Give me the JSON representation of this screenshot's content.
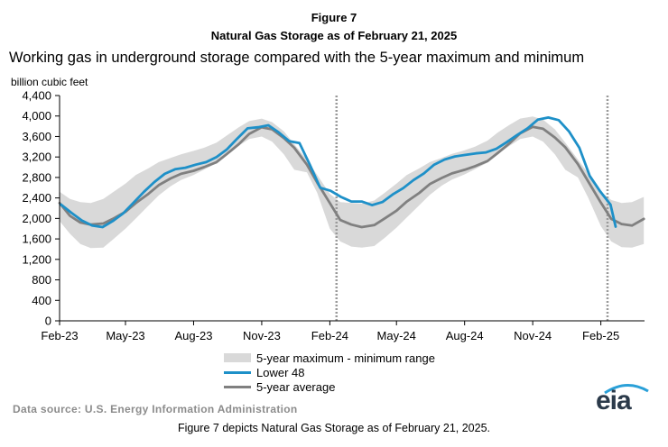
{
  "figure": {
    "label": "Figure 7",
    "title": "Natural Gas Storage as of February 21, 2025",
    "caption": "Figure 7 depicts Natural Gas Storage as of February 21, 2025."
  },
  "source_text": "Data source: U.S. Energy Information Administration",
  "logo_text": "eia",
  "colors": {
    "range": "#d9d9d9",
    "lower48": "#1e90c8",
    "average": "#808080",
    "axis": "#000000"
  },
  "chart_data": {
    "type": "area",
    "title": "Working gas in underground  storage compared with the 5-year maximum  and minimum",
    "ylabel": "billion cubic feet",
    "xlabel": "",
    "ylim": [
      0,
      4400
    ],
    "yticks": [
      0,
      400,
      800,
      1200,
      1600,
      2000,
      2400,
      2800,
      3200,
      3600,
      4000,
      4400
    ],
    "ytick_labels": [
      "0",
      "400",
      "800",
      "1,200",
      "1,600",
      "2,000",
      "2,400",
      "2,800",
      "3,200",
      "3,600",
      "4,000",
      "4,400"
    ],
    "xlim": [
      "2023-02-01",
      "2025-04-01"
    ],
    "xticks": [
      {
        "date": "2023-02-01",
        "label": "Feb-23"
      },
      {
        "date": "2023-05-01",
        "label": "May-23"
      },
      {
        "date": "2023-08-01",
        "label": "Aug-23"
      },
      {
        "date": "2023-11-01",
        "label": "Nov-23"
      },
      {
        "date": "2024-02-01",
        "label": "Feb-24"
      },
      {
        "date": "2024-05-01",
        "label": "May-24"
      },
      {
        "date": "2024-08-01",
        "label": "Aug-24"
      },
      {
        "date": "2024-11-01",
        "label": "Nov-24"
      },
      {
        "date": "2025-02-01",
        "label": "Feb-25"
      }
    ],
    "vertical_markers": [
      "2024-02-10",
      "2025-02-10"
    ],
    "grid": "horizontal",
    "legend_position": "bottom",
    "legend": [
      "5-year maximum - minimum range",
      "Lower 48",
      "5-year average"
    ],
    "range_band": {
      "name": "5-year maximum - minimum range",
      "x": [
        "2023-02-01",
        "2023-02-15",
        "2023-03-01",
        "2023-03-15",
        "2023-04-01",
        "2023-04-15",
        "2023-05-01",
        "2023-05-15",
        "2023-06-01",
        "2023-06-15",
        "2023-07-01",
        "2023-07-15",
        "2023-08-01",
        "2023-08-15",
        "2023-09-01",
        "2023-09-15",
        "2023-10-01",
        "2023-10-15",
        "2023-11-01",
        "2023-11-15",
        "2023-12-01",
        "2023-12-15",
        "2024-01-01",
        "2024-01-15",
        "2024-02-01",
        "2024-02-15",
        "2024-03-01",
        "2024-03-15",
        "2024-04-01",
        "2024-04-15",
        "2024-05-01",
        "2024-05-15",
        "2024-06-01",
        "2024-06-15",
        "2024-07-01",
        "2024-07-15",
        "2024-08-01",
        "2024-08-15",
        "2024-09-01",
        "2024-09-15",
        "2024-10-01",
        "2024-10-15",
        "2024-11-01",
        "2024-11-15",
        "2024-12-01",
        "2024-12-15",
        "2025-01-01",
        "2025-01-15",
        "2025-02-01",
        "2025-02-15",
        "2025-03-01",
        "2025-03-15",
        "2025-03-31"
      ],
      "max": [
        2520,
        2380,
        2320,
        2300,
        2380,
        2520,
        2680,
        2850,
        2980,
        3100,
        3180,
        3250,
        3320,
        3380,
        3480,
        3620,
        3780,
        3900,
        3950,
        3880,
        3700,
        3450,
        3150,
        2850,
        2480,
        2320,
        2300,
        2290,
        2350,
        2500,
        2680,
        2850,
        2980,
        3100,
        3180,
        3260,
        3330,
        3400,
        3520,
        3680,
        3830,
        3950,
        3990,
        3930,
        3740,
        3480,
        3150,
        2880,
        2520,
        2360,
        2300,
        2320,
        2420
      ],
      "min": [
        1950,
        1700,
        1500,
        1420,
        1430,
        1600,
        1800,
        2000,
        2250,
        2450,
        2630,
        2750,
        2850,
        2950,
        3080,
        3250,
        3420,
        3550,
        3600,
        3500,
        3250,
        2950,
        2900,
        2500,
        1800,
        1550,
        1450,
        1430,
        1460,
        1620,
        1820,
        2020,
        2260,
        2460,
        2640,
        2760,
        2860,
        2960,
        3090,
        3260,
        3420,
        3550,
        3600,
        3500,
        3250,
        2950,
        2800,
        2400,
        1850,
        1550,
        1440,
        1430,
        1500
      ]
    },
    "series": [
      {
        "name": "Lower 48",
        "x": [
          "2023-02-03",
          "2023-02-17",
          "2023-03-03",
          "2023-03-17",
          "2023-03-31",
          "2023-04-14",
          "2023-04-28",
          "2023-05-12",
          "2023-05-26",
          "2023-06-09",
          "2023-06-23",
          "2023-07-07",
          "2023-07-21",
          "2023-08-04",
          "2023-08-18",
          "2023-09-01",
          "2023-09-15",
          "2023-09-29",
          "2023-10-13",
          "2023-10-27",
          "2023-11-10",
          "2023-11-24",
          "2023-12-08",
          "2023-12-22",
          "2024-01-05",
          "2024-01-19",
          "2024-02-02",
          "2024-02-16",
          "2024-03-01",
          "2024-03-15",
          "2024-03-29",
          "2024-04-12",
          "2024-04-26",
          "2024-05-10",
          "2024-05-24",
          "2024-06-07",
          "2024-06-21",
          "2024-07-05",
          "2024-07-19",
          "2024-08-02",
          "2024-08-16",
          "2024-08-30",
          "2024-09-13",
          "2024-09-27",
          "2024-10-11",
          "2024-10-25",
          "2024-11-08",
          "2024-11-22",
          "2024-12-06",
          "2024-12-20",
          "2025-01-03",
          "2025-01-17",
          "2025-01-31",
          "2025-02-14",
          "2025-02-21"
        ],
        "values": [
          2270,
          2110,
          1960,
          1860,
          1830,
          1950,
          2100,
          2310,
          2520,
          2710,
          2870,
          2960,
          2990,
          3050,
          3100,
          3200,
          3350,
          3560,
          3760,
          3780,
          3820,
          3680,
          3510,
          3470,
          3050,
          2600,
          2540,
          2420,
          2330,
          2330,
          2260,
          2320,
          2470,
          2590,
          2750,
          2880,
          3050,
          3150,
          3210,
          3240,
          3270,
          3290,
          3360,
          3490,
          3630,
          3760,
          3930,
          3970,
          3920,
          3700,
          3380,
          2830,
          2530,
          2270,
          1840
        ]
      },
      {
        "name": "5-year average",
        "x": [
          "2023-02-01",
          "2023-02-15",
          "2023-03-01",
          "2023-03-15",
          "2023-04-01",
          "2023-04-15",
          "2023-05-01",
          "2023-05-15",
          "2023-06-01",
          "2023-06-15",
          "2023-07-01",
          "2023-07-15",
          "2023-08-01",
          "2023-08-15",
          "2023-09-01",
          "2023-09-15",
          "2023-10-01",
          "2023-10-15",
          "2023-11-01",
          "2023-11-15",
          "2023-12-01",
          "2023-12-15",
          "2024-01-01",
          "2024-01-15",
          "2024-02-01",
          "2024-02-15",
          "2024-03-01",
          "2024-03-15",
          "2024-04-01",
          "2024-04-15",
          "2024-05-01",
          "2024-05-15",
          "2024-06-01",
          "2024-06-15",
          "2024-07-01",
          "2024-07-15",
          "2024-08-01",
          "2024-08-15",
          "2024-09-01",
          "2024-09-15",
          "2024-10-01",
          "2024-10-15",
          "2024-11-01",
          "2024-11-15",
          "2024-12-01",
          "2024-12-15",
          "2025-01-01",
          "2025-01-15",
          "2025-02-01",
          "2025-02-15",
          "2025-03-01",
          "2025-03-15",
          "2025-03-31"
        ],
        "values": [
          2300,
          2050,
          1920,
          1880,
          1900,
          2000,
          2130,
          2300,
          2480,
          2650,
          2780,
          2870,
          2930,
          3000,
          3100,
          3260,
          3450,
          3650,
          3780,
          3740,
          3570,
          3380,
          3050,
          2700,
          2300,
          1970,
          1880,
          1830,
          1870,
          2000,
          2150,
          2330,
          2500,
          2670,
          2790,
          2880,
          2950,
          3020,
          3120,
          3280,
          3470,
          3660,
          3790,
          3750,
          3580,
          3390,
          3060,
          2720,
          2310,
          1990,
          1890,
          1860,
          1990
        ]
      }
    ]
  }
}
